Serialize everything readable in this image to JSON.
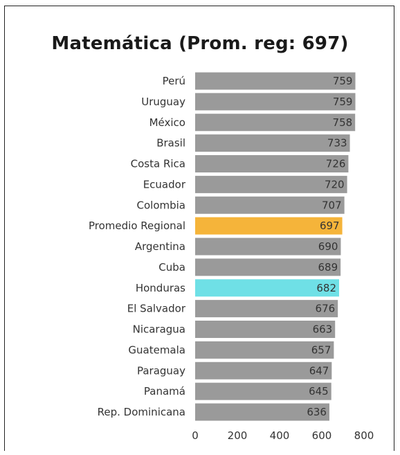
{
  "chart_data": {
    "type": "bar",
    "orientation": "horizontal",
    "title": "Matemática (Prom. reg: 697)",
    "xlabel": "",
    "ylabel": "",
    "xlim": [
      0,
      800
    ],
    "xticks": [
      "0",
      "200",
      "400",
      "600",
      "800"
    ],
    "grid": false,
    "legend": "none",
    "categories": [
      "Perú",
      "Uruguay",
      "México",
      "Brasil",
      "Costa Rica",
      "Ecuador",
      "Colombia",
      "Promedio Regional",
      "Argentina",
      "Cuba",
      "Honduras",
      "El Salvador",
      "Nicaragua",
      "Guatemala",
      "Paraguay",
      "Panamá",
      "Rep. Dominicana"
    ],
    "values": [
      759,
      759,
      758,
      733,
      726,
      720,
      707,
      697,
      690,
      689,
      682,
      676,
      663,
      657,
      647,
      645,
      636
    ],
    "colors": {
      "default": "#9a9a9a",
      "Promedio Regional": "#f5b43a",
      "Honduras": "#6fe0e6"
    }
  }
}
